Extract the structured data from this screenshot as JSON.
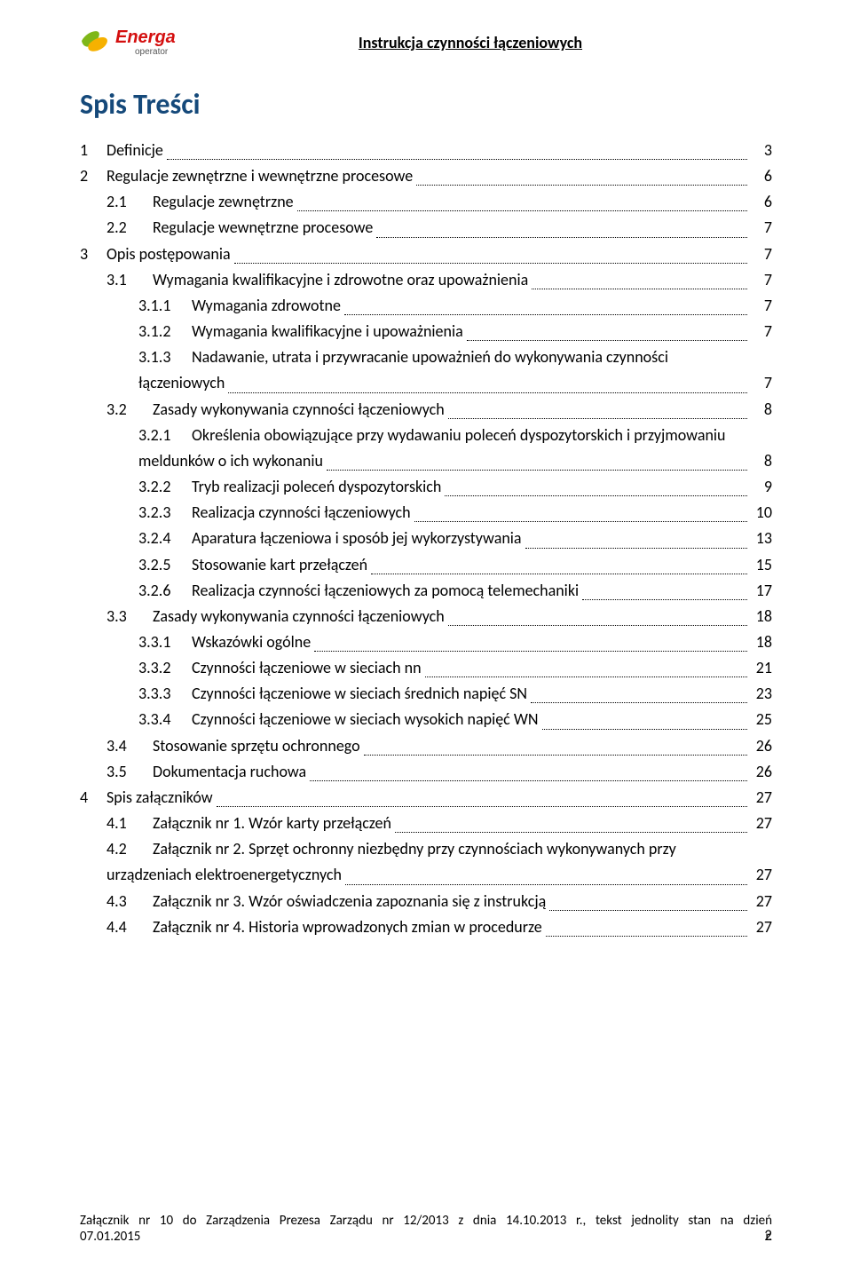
{
  "header": {
    "logo_brand": "Energa",
    "logo_sub": "operator",
    "title": "Instrukcja czynności łączeniowych",
    "brand_color": "#d40f0f",
    "swirl_green": "#7fb719",
    "swirl_yellow": "#f6b100"
  },
  "toc_title": "Spis Treści",
  "toc_title_color": "#15497a",
  "toc": [
    {
      "lvl": 0,
      "num": "1",
      "text": "Definicje",
      "page": "3"
    },
    {
      "lvl": 0,
      "num": "2",
      "text": "Regulacje zewnętrzne i wewnętrzne procesowe",
      "page": "6"
    },
    {
      "lvl": 1,
      "num": "2.1",
      "text": "Regulacje zewnętrzne",
      "page": "6"
    },
    {
      "lvl": 1,
      "num": "2.2",
      "text": "Regulacje wewnętrzne procesowe",
      "page": "7"
    },
    {
      "lvl": 0,
      "num": "3",
      "text": "Opis postępowania",
      "page": "7"
    },
    {
      "lvl": 1,
      "num": "3.1",
      "text": "Wymagania kwalifikacyjne i zdrowotne oraz upoważnienia",
      "page": "7"
    },
    {
      "lvl": 2,
      "num": "3.1.1",
      "text": "Wymagania zdrowotne",
      "page": "7"
    },
    {
      "lvl": 2,
      "num": "3.1.2",
      "text": "Wymagania kwalifikacyjne i upoważnienia",
      "page": "7"
    },
    {
      "lvl": 2,
      "num": "3.1.3",
      "text_line1": "Nadawanie, utrata i przywracanie upoważnień do wykonywania czynności",
      "text_line2": "łączeniowych",
      "page": "7",
      "multi": true,
      "cont_indent": 66
    },
    {
      "lvl": 1,
      "num": "3.2",
      "text": "Zasady wykonywania czynności łączeniowych",
      "page": "8"
    },
    {
      "lvl": 2,
      "num": "3.2.1",
      "text_line1": "Określenia obowiązujące przy wydawaniu poleceń dyspozytorskich i przyjmowaniu",
      "text_line2": "meldunków o ich wykonaniu",
      "page": "8",
      "multi": true,
      "cont_indent": 66
    },
    {
      "lvl": 2,
      "num": "3.2.2",
      "text": "Tryb realizacji poleceń dyspozytorskich",
      "page": "9"
    },
    {
      "lvl": 2,
      "num": "3.2.3",
      "text": "Realizacja czynności łączeniowych",
      "page": "10"
    },
    {
      "lvl": 2,
      "num": "3.2.4",
      "text": "Aparatura łączeniowa i sposób jej wykorzystywania",
      "page": "13"
    },
    {
      "lvl": 2,
      "num": "3.2.5",
      "text": "Stosowanie kart przełączeń",
      "page": "15"
    },
    {
      "lvl": 2,
      "num": "3.2.6",
      "text": "Realizacja czynności łączeniowych za pomocą telemechaniki",
      "page": "17"
    },
    {
      "lvl": 1,
      "num": "3.3",
      "text": "Zasady wykonywania czynności łączeniowych",
      "page": "18"
    },
    {
      "lvl": 2,
      "num": "3.3.1",
      "text": "Wskazówki ogólne",
      "page": "18"
    },
    {
      "lvl": 2,
      "num": "3.3.2",
      "text": "Czynności łączeniowe w sieciach nn",
      "page": "21"
    },
    {
      "lvl": 2,
      "num": "3.3.3",
      "text": "Czynności łączeniowe w sieciach średnich napięć SN",
      "page": "23"
    },
    {
      "lvl": 2,
      "num": "3.3.4",
      "text": "Czynności łączeniowe w sieciach wysokich napięć WN",
      "page": "25"
    },
    {
      "lvl": 1,
      "num": "3.4",
      "text": "Stosowanie sprzętu ochronnego",
      "page": "26"
    },
    {
      "lvl": 1,
      "num": "3.5",
      "text": "Dokumentacja ruchowa",
      "page": "26"
    },
    {
      "lvl": 0,
      "num": "4",
      "text": "Spis załączników",
      "page": "27"
    },
    {
      "lvl": 1,
      "num": "4.1",
      "text": "Załącznik nr 1. Wzór karty przełączeń",
      "page": "27"
    },
    {
      "lvl": 1,
      "num": "4.2",
      "text_line1": "Załącznik nr 2. Sprzęt ochronny niezbędny przy czynnościach wykonywanych przy",
      "text_line2": "urządzeniach elektroenergetycznych",
      "page": "27",
      "multi": true,
      "cont_indent": 30
    },
    {
      "lvl": 1,
      "num": "4.3",
      "text": "Załącznik nr 3. Wzór oświadczenia zapoznania się z instrukcją",
      "page": "27"
    },
    {
      "lvl": 1,
      "num": "4.4",
      "text": "Załącznik nr 4. Historia wprowadzonych zmian w procedurze",
      "page": "27"
    }
  ],
  "footer": {
    "line1": "Załącznik nr 10 do Zarządzenia Prezesa Zarządu nr 12/2013 z dnia 14.10.2013 r., tekst jednolity stan na dzień",
    "line2": "07.01.2015 r.",
    "page_number": "2"
  }
}
